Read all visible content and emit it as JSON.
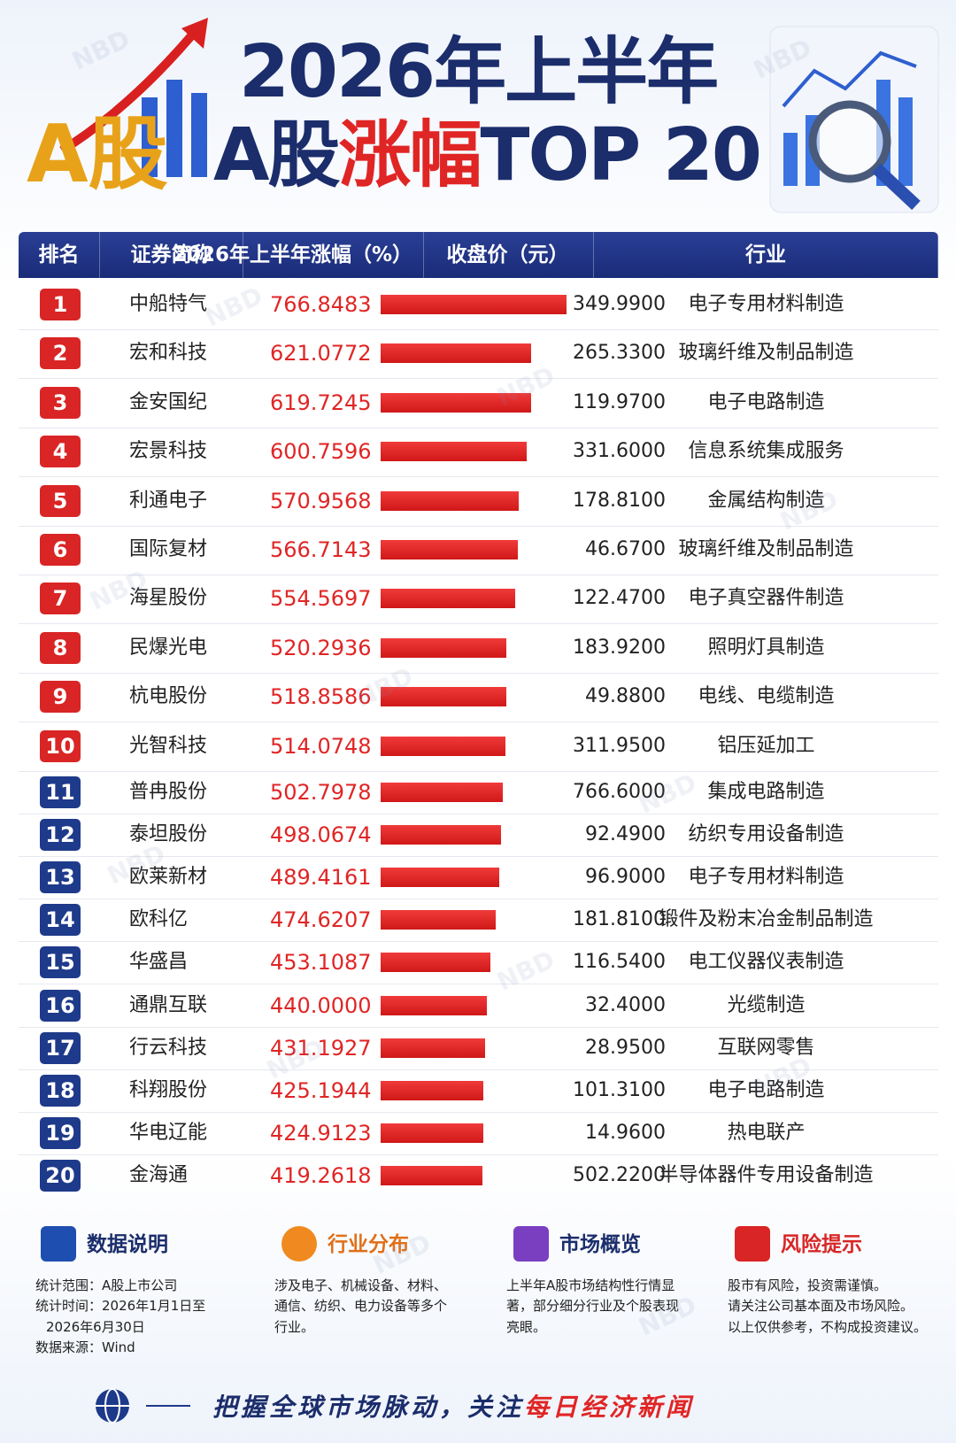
{
  "header": {
    "logo": "A股",
    "title_line1": "2026年上半年",
    "title_line2_a": "A股",
    "title_line2_b": "涨幅",
    "title_line2_c": "TOP 20",
    "watermark": "NBD"
  },
  "table": {
    "columns": [
      "排名",
      "证券简称",
      "2026年上半年涨幅（%）",
      "收盘价（元）",
      "行业"
    ],
    "rows": [
      [
        "1",
        "中船特气",
        "766.8483",
        "349.9900",
        "电子专用材料制造"
      ],
      [
        "2",
        "宏和科技",
        "621.0772",
        "265.3300",
        "玻璃纤维及制品制造"
      ],
      [
        "3",
        "金安国纪",
        "619.7245",
        "119.9700",
        "电子电路制造"
      ],
      [
        "4",
        "宏景科技",
        "600.7596",
        "331.6000",
        "信息系统集成服务"
      ],
      [
        "5",
        "利通电子",
        "570.9568",
        "178.8100",
        "金属结构制造"
      ],
      [
        "6",
        "国际复材",
        "566.7143",
        "46.6700",
        "玻璃纤维及制品制造"
      ],
      [
        "7",
        "海星股份",
        "554.5697",
        "122.4700",
        "电子真空器件制造"
      ],
      [
        "8",
        "民爆光电",
        "520.2936",
        "183.9200",
        "照明灯具制造"
      ],
      [
        "9",
        "杭电股份",
        "518.8586",
        "49.8800",
        "电线、电缆制造"
      ],
      [
        "10",
        "光智科技",
        "514.0748",
        "311.9500",
        "铝压延加工"
      ],
      [
        "11",
        "普冉股份",
        "502.7978",
        "766.6000",
        "集成电路制造"
      ],
      [
        "12",
        "泰坦股份",
        "498.0674",
        "92.4900",
        "纺织专用设备制造"
      ],
      [
        "13",
        "欧莱新材",
        "489.4161",
        "96.9000",
        "电子专用材料制造"
      ],
      [
        "14",
        "欧科亿",
        "474.6207",
        "181.8100",
        "锻件及粉末冶金制品制造"
      ],
      [
        "15",
        "华盛昌",
        "453.1087",
        "116.5400",
        "电工仪器仪表制造"
      ],
      [
        "16",
        "通鼎互联",
        "440.0000",
        "32.4000",
        "光缆制造"
      ],
      [
        "17",
        "行云科技",
        "431.1927",
        "28.9500",
        "互联网零售"
      ],
      [
        "18",
        "科翔股份",
        "425.1944",
        "101.3100",
        "电子电路制造"
      ],
      [
        "19",
        "华电辽能",
        "424.9123",
        "14.9600",
        "热电联产"
      ],
      [
        "20",
        "金海通",
        "419.2618",
        "502.2200",
        "半导体器件专用设备制造"
      ]
    ]
  },
  "info": [
    {
      "title": "数据说明",
      "lines": [
        "统计范围：A股上市公司",
        "统计时间：2026年1月1日至2026年6月30日",
        "数据来源：Wind"
      ]
    },
    {
      "title": "行业分布",
      "lines": [
        "涉及电子、机械设备、材料、通信、纺织、电力设备等多个行业。"
      ]
    },
    {
      "title": "市场概览",
      "lines": [
        "上半年A股市场结构性行情显著，部分细分行业及个股表现亮眼。"
      ]
    },
    {
      "title": "风险提示",
      "lines": [
        "股市有风险，投资需谨慎。",
        "请关注公司基本面及市场风险。",
        "以上仅供参考，不构成投资建议。"
      ]
    }
  ],
  "footer": {
    "text_a": "把握全球市场脉动，关注",
    "text_b": "每日经济新闻"
  }
}
